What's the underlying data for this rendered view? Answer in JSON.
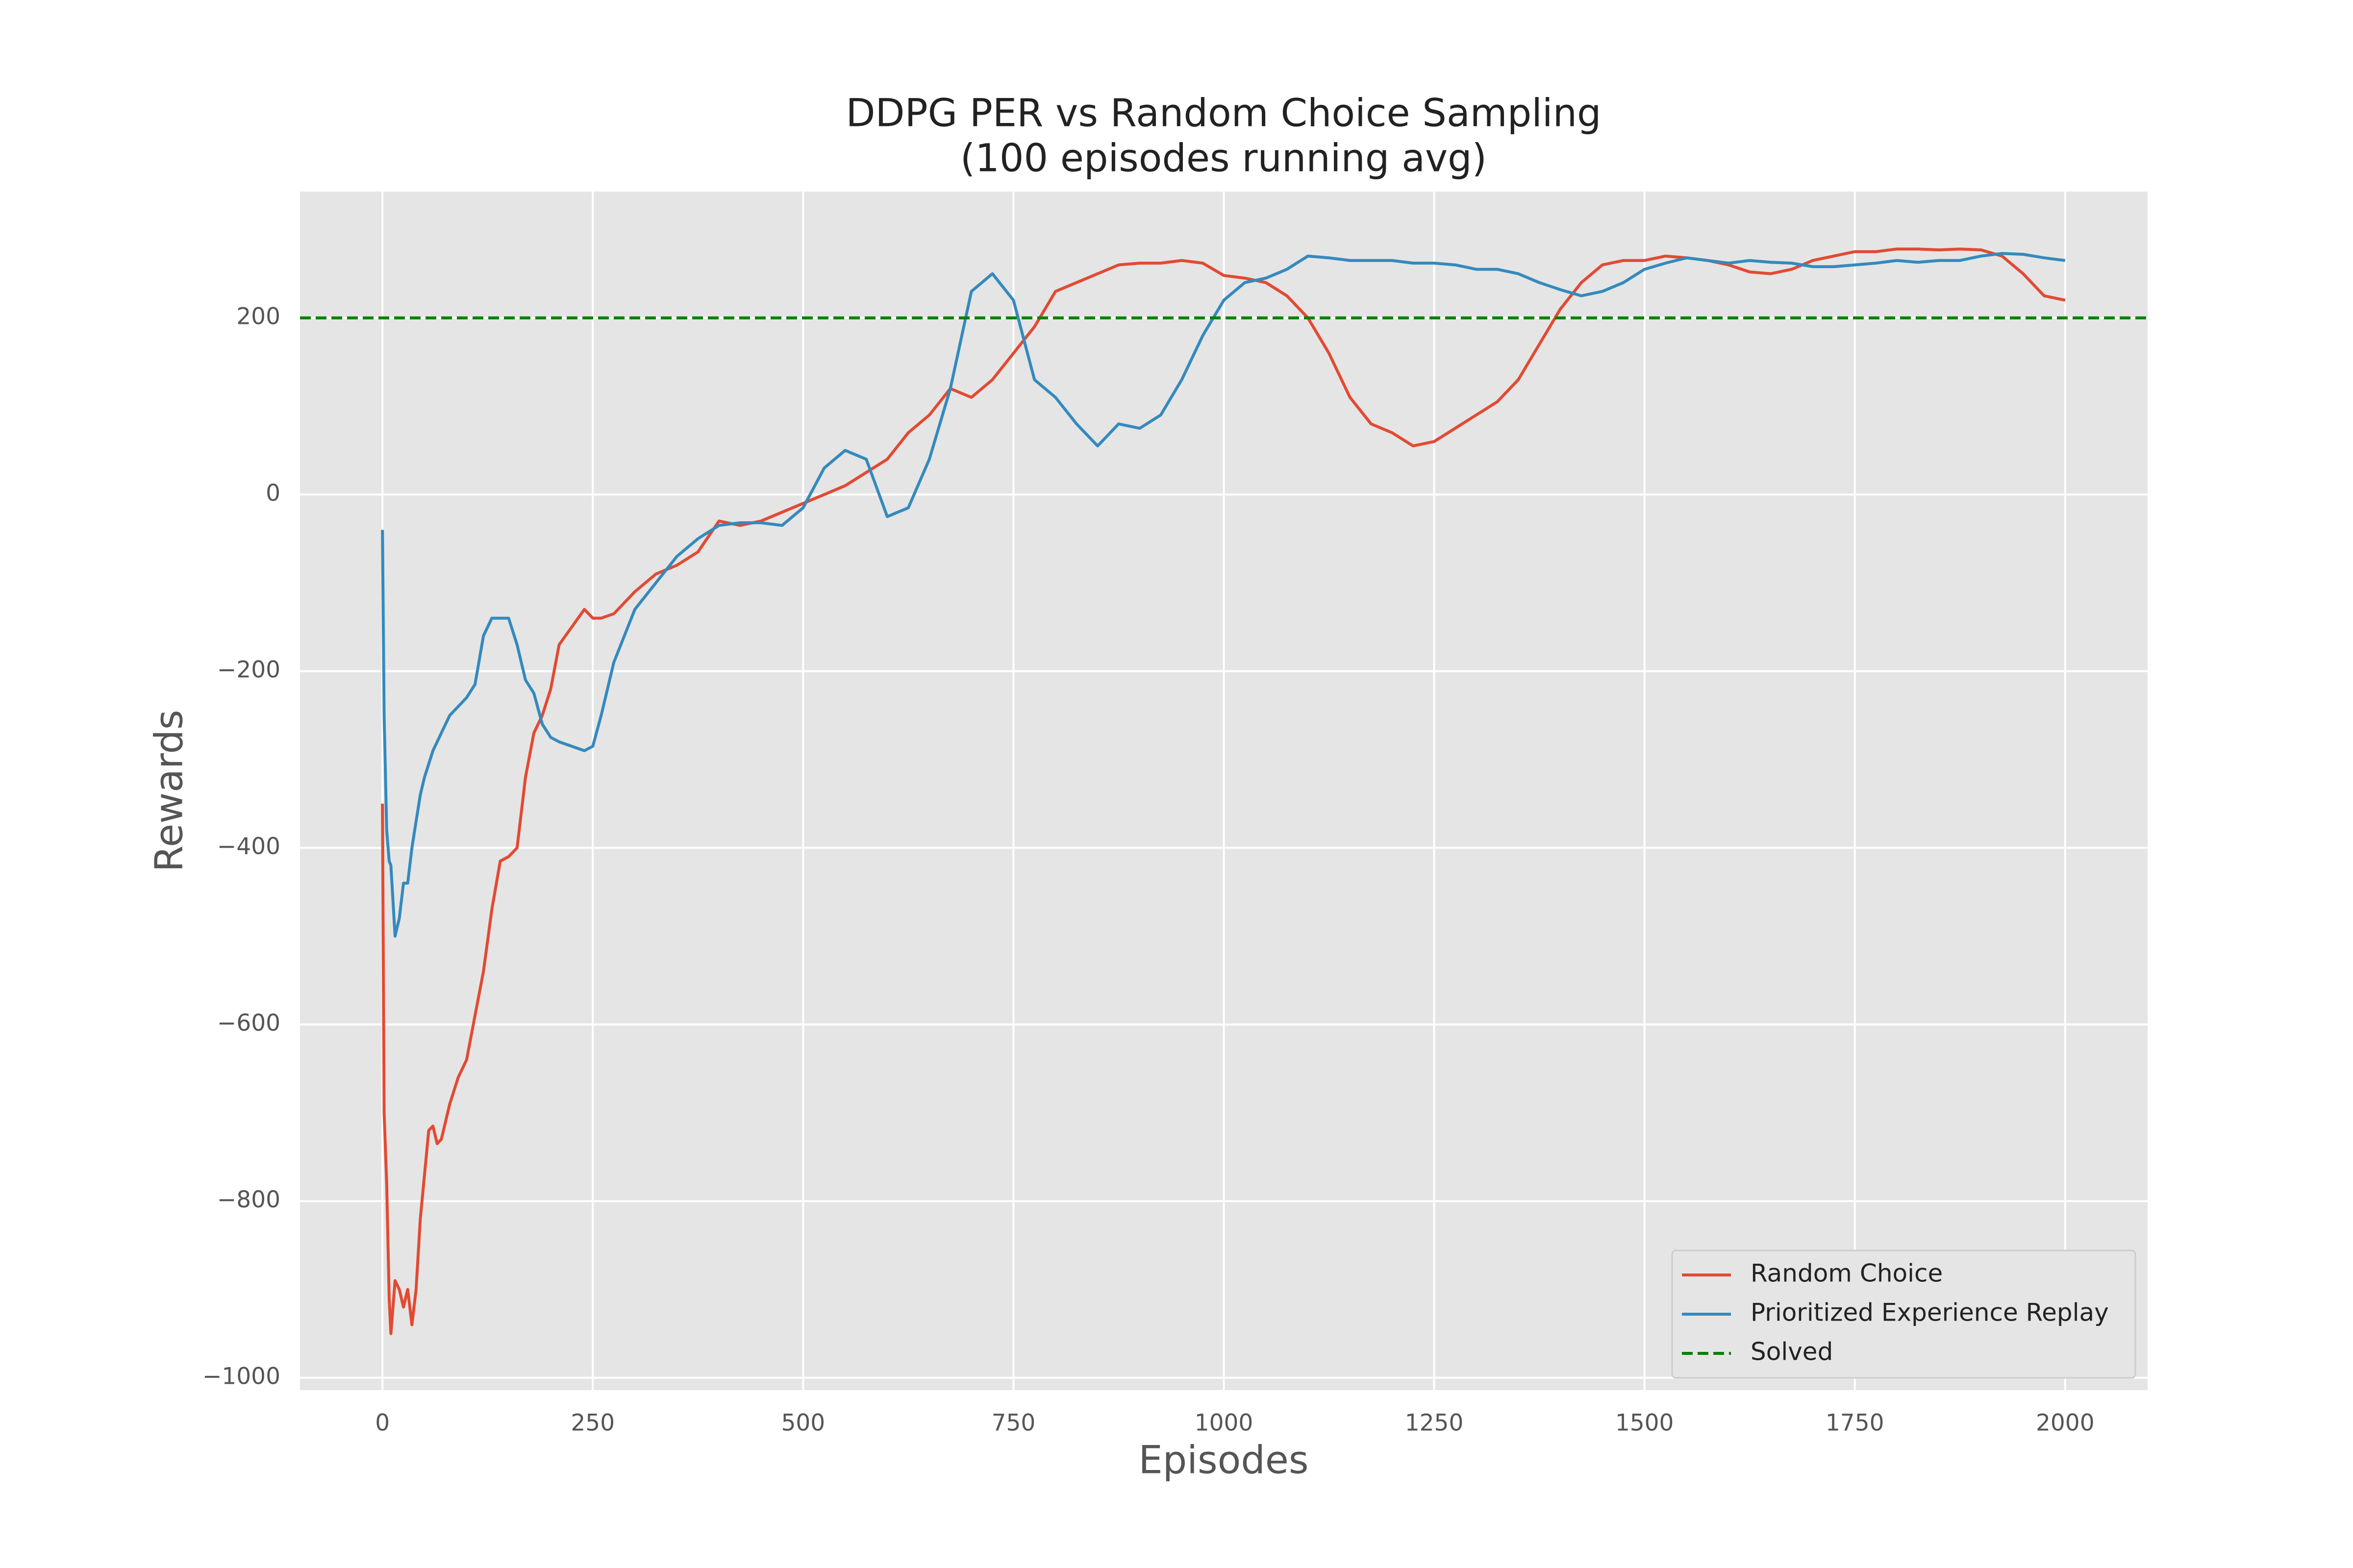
{
  "chart_data": {
    "type": "line",
    "title": "DDPG PER vs Random Choice Sampling",
    "subtitle": "(100 episodes running avg)",
    "xlabel": "Episodes",
    "ylabel": "Rewards",
    "x": [
      0,
      2,
      5,
      8,
      10,
      15,
      20,
      25,
      30,
      35,
      40,
      45,
      50,
      55,
      60,
      65,
      70,
      80,
      90,
      100,
      110,
      120,
      130,
      140,
      150,
      160,
      170,
      180,
      190,
      200,
      210,
      225,
      240,
      250,
      260,
      275,
      300,
      325,
      350,
      375,
      400,
      425,
      450,
      475,
      500,
      525,
      550,
      575,
      600,
      625,
      650,
      675,
      700,
      725,
      750,
      775,
      800,
      825,
      850,
      875,
      900,
      925,
      950,
      975,
      1000,
      1025,
      1050,
      1075,
      1100,
      1125,
      1150,
      1175,
      1200,
      1225,
      1250,
      1275,
      1300,
      1325,
      1350,
      1375,
      1400,
      1425,
      1450,
      1475,
      1500,
      1525,
      1550,
      1575,
      1600,
      1625,
      1650,
      1675,
      1700,
      1725,
      1750,
      1775,
      1800,
      1825,
      1850,
      1875,
      1900,
      1925,
      1950,
      1975,
      2000
    ],
    "series": [
      {
        "name": "Random Choice",
        "color": "#e24a33",
        "values": [
          -350,
          -700,
          -780,
          -910,
          -950,
          -890,
          -900,
          -920,
          -900,
          -940,
          -900,
          -820,
          -770,
          -720,
          -715,
          -735,
          -730,
          -690,
          -660,
          -640,
          -590,
          -540,
          -470,
          -415,
          -410,
          -400,
          -320,
          -270,
          -250,
          -220,
          -170,
          -150,
          -130,
          -140,
          -140,
          -135,
          -110,
          -90,
          -80,
          -65,
          -30,
          -35,
          -30,
          -20,
          -10,
          0,
          10,
          25,
          40,
          70,
          90,
          120,
          110,
          130,
          160,
          190,
          230,
          240,
          250,
          260,
          262,
          262,
          265,
          262,
          248,
          245,
          240,
          225,
          200,
          160,
          110,
          80,
          70,
          55,
          60,
          75,
          90,
          105,
          130,
          170,
          210,
          240,
          260,
          265,
          265,
          270,
          268,
          265,
          260,
          252,
          250,
          255,
          265,
          270,
          275,
          275,
          278,
          278,
          277,
          278,
          277,
          270,
          250,
          225,
          220
        ]
      },
      {
        "name": "Prioritized Experience Replay",
        "color": "#348abd",
        "values": [
          -40,
          -250,
          -380,
          -415,
          -420,
          -500,
          -480,
          -440,
          -440,
          -400,
          -370,
          -340,
          -320,
          -305,
          -290,
          -280,
          -270,
          -250,
          -240,
          -230,
          -215,
          -160,
          -140,
          -140,
          -140,
          -170,
          -210,
          -225,
          -260,
          -275,
          -280,
          -285,
          -290,
          -285,
          -250,
          -190,
          -130,
          -100,
          -70,
          -50,
          -35,
          -32,
          -32,
          -35,
          -15,
          30,
          50,
          40,
          -25,
          -15,
          40,
          120,
          230,
          250,
          220,
          130,
          110,
          80,
          55,
          80,
          75,
          90,
          130,
          180,
          220,
          240,
          245,
          255,
          270,
          268,
          265,
          265,
          265,
          262,
          262,
          260,
          255,
          255,
          250,
          240,
          232,
          225,
          230,
          240,
          255,
          262,
          268,
          265,
          262,
          265,
          263,
          262,
          258,
          258,
          260,
          262,
          265,
          263,
          265,
          265,
          270,
          273,
          272,
          268,
          265
        ]
      }
    ],
    "hline": {
      "name": "Solved",
      "color": "green",
      "y": 200,
      "style": "dashed"
    },
    "xlim": [
      -98,
      2098
    ],
    "ylim": [
      -1014,
      343
    ],
    "xticks": [
      0,
      250,
      500,
      750,
      1000,
      1250,
      1500,
      1750,
      2000
    ],
    "yticks": [
      {
        "value": -1000,
        "label": "−1000"
      },
      {
        "value": -800,
        "label": "−800"
      },
      {
        "value": -600,
        "label": "−600"
      },
      {
        "value": -400,
        "label": "−400"
      },
      {
        "value": -200,
        "label": "−200"
      },
      0,
      200
    ],
    "grid": true,
    "legend": "lower right"
  }
}
